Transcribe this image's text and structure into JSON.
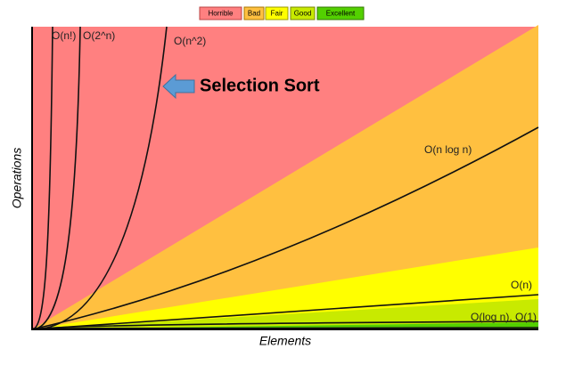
{
  "legend": [
    "Horrible",
    "Bad",
    "Fair",
    "Good",
    "Excellent"
  ],
  "curves": [
    "O(n!)",
    "O(2^n)",
    "O(n^2)",
    "O(n log n)",
    "O(n)",
    "O(log n), O(1)"
  ],
  "annotation": "Selection Sort",
  "x_label": "Elements",
  "y_label": "Operations"
}
